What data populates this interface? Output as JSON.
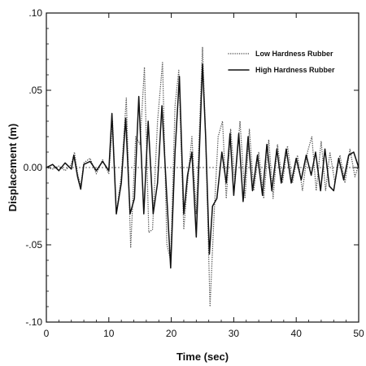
{
  "chart_data": {
    "type": "line",
    "xlabel": "Time (sec)",
    "ylabel": "Displacement (m)",
    "xlim": [
      0,
      50
    ],
    "ylim": [
      -0.1,
      0.1
    ],
    "x_ticks": [
      0,
      10,
      20,
      30,
      40,
      50
    ],
    "x_tick_labels": [
      "0",
      "10",
      "20",
      "30",
      "40",
      "50"
    ],
    "y_ticks": [
      0.1,
      0.05,
      0.0,
      -0.05,
      -0.1
    ],
    "y_tick_labels": [
      ".10",
      ".05",
      "0.00",
      "-.05",
      "-.10"
    ],
    "zero_line": true,
    "legend_position": "top-right",
    "series": [
      {
        "name": "Low Hardness Rubber",
        "style": "dotted",
        "color": "#555555",
        "points": [
          [
            0,
            0
          ],
          [
            1,
            -0.001
          ],
          [
            2,
            0.001
          ],
          [
            3,
            -0.002
          ],
          [
            4,
            0.002
          ],
          [
            4.5,
            0.01
          ],
          [
            5,
            -0.004
          ],
          [
            5.5,
            -0.012
          ],
          [
            6,
            0.003
          ],
          [
            7,
            0.006
          ],
          [
            8,
            -0.004
          ],
          [
            9,
            0.005
          ],
          [
            10,
            -0.004
          ],
          [
            10.6,
            0.03
          ],
          [
            11.2,
            -0.03
          ],
          [
            12,
            -0.005
          ],
          [
            12.8,
            0.045
          ],
          [
            13.5,
            -0.052
          ],
          [
            14.3,
            0.02
          ],
          [
            15,
            0.015
          ],
          [
            15.7,
            0.065
          ],
          [
            16.4,
            -0.042
          ],
          [
            17,
            -0.04
          ],
          [
            17.8,
            0.03
          ],
          [
            18.6,
            0.068
          ],
          [
            19.3,
            -0.05
          ],
          [
            19.9,
            -0.06
          ],
          [
            20.6,
            0.04
          ],
          [
            21.2,
            0.063
          ],
          [
            22,
            -0.04
          ],
          [
            22.6,
            -0.01
          ],
          [
            23.3,
            0.02
          ],
          [
            24,
            -0.03
          ],
          [
            25,
            0.078
          ],
          [
            25.5,
            0.02
          ],
          [
            26.2,
            -0.09
          ],
          [
            26.8,
            -0.035
          ],
          [
            27.5,
            0.02
          ],
          [
            28.2,
            0.03
          ],
          [
            28.8,
            -0.02
          ],
          [
            29.5,
            0.025
          ],
          [
            30.2,
            -0.01
          ],
          [
            31,
            0.03
          ],
          [
            31.8,
            -0.02
          ],
          [
            32.5,
            0.025
          ],
          [
            33.2,
            -0.015
          ],
          [
            34,
            0.01
          ],
          [
            34.8,
            -0.02
          ],
          [
            35.6,
            0.018
          ],
          [
            36.3,
            -0.02
          ],
          [
            37,
            0.015
          ],
          [
            37.8,
            -0.01
          ],
          [
            38.6,
            0.014
          ],
          [
            39.4,
            -0.01
          ],
          [
            40.2,
            0.008
          ],
          [
            41,
            -0.015
          ],
          [
            41.8,
            0.01
          ],
          [
            42.5,
            0.02
          ],
          [
            43.2,
            -0.015
          ],
          [
            44,
            0.017
          ],
          [
            44.7,
            -0.015
          ],
          [
            45.4,
            0.01
          ],
          [
            46.2,
            -0.01
          ],
          [
            47,
            0.008
          ],
          [
            47.8,
            -0.01
          ],
          [
            48.6,
            0.012
          ],
          [
            49.4,
            -0.006
          ],
          [
            50,
            0.002
          ]
        ]
      },
      {
        "name": "High Hardness Rubber",
        "style": "solid",
        "color": "#111111",
        "points": [
          [
            0,
            0
          ],
          [
            1,
            0.002
          ],
          [
            2,
            -0.002
          ],
          [
            3,
            0.003
          ],
          [
            4,
            -0.001
          ],
          [
            4.4,
            0.008
          ],
          [
            5,
            -0.006
          ],
          [
            5.5,
            -0.014
          ],
          [
            6,
            0.002
          ],
          [
            7,
            0.004
          ],
          [
            8,
            -0.002
          ],
          [
            9,
            0.004
          ],
          [
            10,
            -0.002
          ],
          [
            10.5,
            0.035
          ],
          [
            11.2,
            -0.03
          ],
          [
            12,
            -0.01
          ],
          [
            12.7,
            0.032
          ],
          [
            13.4,
            -0.03
          ],
          [
            14.1,
            -0.02
          ],
          [
            14.8,
            0.046
          ],
          [
            15.6,
            -0.03
          ],
          [
            16.3,
            0.03
          ],
          [
            17.1,
            -0.03
          ],
          [
            17.8,
            -0.01
          ],
          [
            18.5,
            0.04
          ],
          [
            19.3,
            -0.02
          ],
          [
            19.9,
            -0.065
          ],
          [
            20.6,
            0.01
          ],
          [
            21.3,
            0.059
          ],
          [
            22,
            -0.03
          ],
          [
            22.6,
            -0.005
          ],
          [
            23.3,
            0.01
          ],
          [
            24,
            -0.045
          ],
          [
            25,
            0.067
          ],
          [
            25.5,
            0.02
          ],
          [
            26.1,
            -0.056
          ],
          [
            26.6,
            -0.025
          ],
          [
            27.3,
            -0.02
          ],
          [
            28.1,
            0.01
          ],
          [
            28.8,
            -0.01
          ],
          [
            29.4,
            0.022
          ],
          [
            30,
            -0.018
          ],
          [
            30.8,
            0.022
          ],
          [
            31.5,
            -0.022
          ],
          [
            32.3,
            0.02
          ],
          [
            33,
            -0.015
          ],
          [
            33.8,
            0.008
          ],
          [
            34.6,
            -0.018
          ],
          [
            35.3,
            0.015
          ],
          [
            36.1,
            -0.015
          ],
          [
            36.9,
            0.012
          ],
          [
            37.6,
            -0.01
          ],
          [
            38.4,
            0.012
          ],
          [
            39.2,
            -0.01
          ],
          [
            40,
            0.006
          ],
          [
            40.8,
            -0.008
          ],
          [
            41.6,
            0.008
          ],
          [
            42.4,
            -0.005
          ],
          [
            43.1,
            0.01
          ],
          [
            43.9,
            -0.015
          ],
          [
            44.6,
            0.012
          ],
          [
            45.3,
            -0.012
          ],
          [
            46,
            -0.015
          ],
          [
            46.8,
            0.006
          ],
          [
            47.6,
            -0.008
          ],
          [
            48.4,
            0.008
          ],
          [
            49.2,
            0.01
          ],
          [
            50,
            0
          ]
        ]
      }
    ]
  }
}
